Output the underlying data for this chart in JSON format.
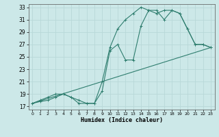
{
  "title": "",
  "xlabel": "Humidex (Indice chaleur)",
  "bg_color": "#cce8e8",
  "grid_color": "#aacccc",
  "line_color": "#2e7d6e",
  "xlim": [
    -0.5,
    23.5
  ],
  "ylim": [
    16.5,
    33.5
  ],
  "xticks": [
    0,
    1,
    2,
    3,
    4,
    5,
    6,
    7,
    8,
    9,
    10,
    11,
    12,
    13,
    14,
    15,
    16,
    17,
    18,
    19,
    20,
    21,
    22,
    23
  ],
  "yticks": [
    17,
    19,
    21,
    23,
    25,
    27,
    29,
    31,
    33
  ],
  "line1_x": [
    0,
    1,
    2,
    3,
    4,
    5,
    6,
    7,
    8,
    9,
    10,
    11,
    12,
    13,
    14,
    15,
    16,
    17,
    18,
    19,
    20,
    21,
    22,
    23
  ],
  "line1_y": [
    17.5,
    18.0,
    18.5,
    19.0,
    19.0,
    18.5,
    17.5,
    17.5,
    17.5,
    19.5,
    26.0,
    27.0,
    24.5,
    24.5,
    30.0,
    32.5,
    32.5,
    31.0,
    32.5,
    32.0,
    29.5,
    27.0,
    27.0,
    26.5
  ],
  "line2_x": [
    0,
    1,
    2,
    3,
    4,
    5,
    6,
    7,
    8,
    9,
    10,
    11,
    12,
    13,
    14,
    15,
    16,
    17,
    18,
    19,
    20,
    21,
    22,
    23
  ],
  "line2_y": [
    17.5,
    17.8,
    18.0,
    18.5,
    19.0,
    18.5,
    18.0,
    17.5,
    17.5,
    21.0,
    26.5,
    29.5,
    31.0,
    32.0,
    33.0,
    32.5,
    32.0,
    32.5,
    32.5,
    32.0,
    29.5,
    27.0,
    27.0,
    26.5
  ],
  "line3_x": [
    0,
    23
  ],
  "line3_y": [
    17.5,
    26.5
  ]
}
